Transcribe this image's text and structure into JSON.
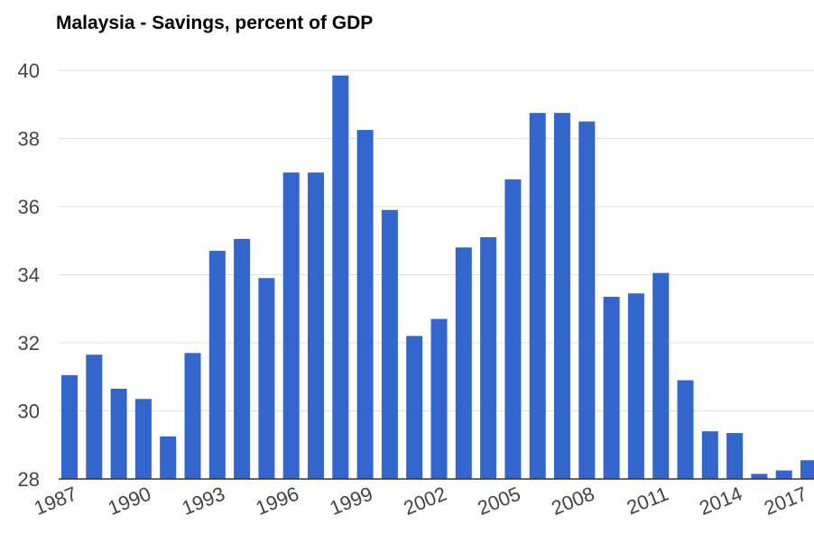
{
  "colors": {
    "bar": "#3366cc",
    "grid": "#e0e0e0",
    "text": "#444444",
    "title": "#000000",
    "background": "#ffffff"
  },
  "chart_data": {
    "type": "bar",
    "title": "Malaysia - Savings, percent of GDP",
    "xlabel": "",
    "ylabel": "",
    "ylim": [
      28,
      40
    ],
    "yticks": [
      28,
      30,
      32,
      34,
      36,
      38,
      40
    ],
    "xticks": [
      1987,
      1990,
      1993,
      1996,
      1999,
      2002,
      2005,
      2008,
      2011,
      2014,
      2017
    ],
    "grid": true,
    "legend": "none",
    "categories": [
      1987,
      1988,
      1989,
      1990,
      1991,
      1992,
      1993,
      1994,
      1995,
      1996,
      1997,
      1998,
      1999,
      2000,
      2001,
      2002,
      2003,
      2004,
      2005,
      2006,
      2007,
      2008,
      2009,
      2010,
      2011,
      2012,
      2013,
      2014,
      2015,
      2016,
      2017
    ],
    "values": [
      31.05,
      31.65,
      30.65,
      30.35,
      29.25,
      31.7,
      34.7,
      35.05,
      33.9,
      37.0,
      37.0,
      39.85,
      38.25,
      35.9,
      32.2,
      32.7,
      34.8,
      35.1,
      36.8,
      38.75,
      38.75,
      38.5,
      33.35,
      33.45,
      34.05,
      30.9,
      29.4,
      29.35,
      28.15,
      28.25,
      28.55
    ]
  }
}
